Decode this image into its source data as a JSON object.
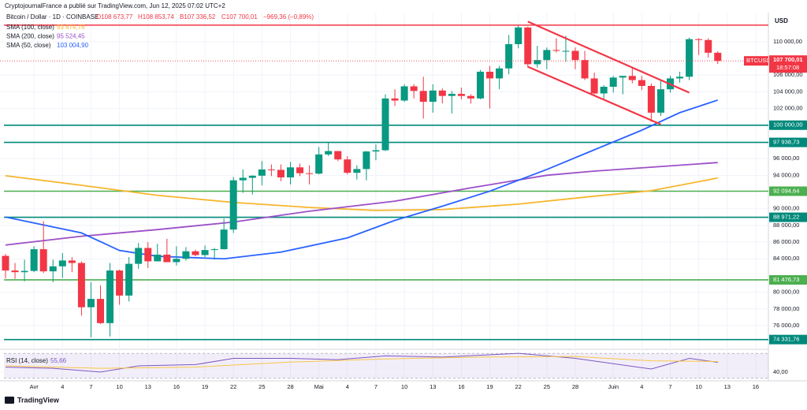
{
  "credit": "CryptojournalFrance a publié sur TradingView.com, Jun 12, 2025 07:02 UTC+2",
  "footer": "TradingView",
  "chart_data": {
    "type": "candlestick",
    "title": "Bitcoin / Dollar · 1D · COINBASE",
    "ohlc_header": [
      "O108 673,77",
      "H108 853,74",
      "B107 336,52",
      "C107 700,01",
      "−969,36 (−0,89%)"
    ],
    "currency": "USD",
    "up_color": "#089981",
    "down_color": "#f23645",
    "xlim": [
      "2025-03-29",
      "2025-06-17"
    ],
    "xticks": [
      {
        "value": "2025-04-01",
        "label": "Avr"
      },
      {
        "value": "2025-04-04",
        "label": "4"
      },
      {
        "value": "2025-04-07",
        "label": "7"
      },
      {
        "value": "2025-04-10",
        "label": "10"
      },
      {
        "value": "2025-04-13",
        "label": "13"
      },
      {
        "value": "2025-04-16",
        "label": "16"
      },
      {
        "value": "2025-04-19",
        "label": "19"
      },
      {
        "value": "2025-04-22",
        "label": "22"
      },
      {
        "value": "2025-04-25",
        "label": "25"
      },
      {
        "value": "2025-04-28",
        "label": "28"
      },
      {
        "value": "2025-05-01",
        "label": "Mai"
      },
      {
        "value": "2025-05-04",
        "label": "4"
      },
      {
        "value": "2025-05-07",
        "label": "7"
      },
      {
        "value": "2025-05-10",
        "label": "10"
      },
      {
        "value": "2025-05-13",
        "label": "13"
      },
      {
        "value": "2025-05-16",
        "label": "16"
      },
      {
        "value": "2025-05-19",
        "label": "19"
      },
      {
        "value": "2025-05-22",
        "label": "22"
      },
      {
        "value": "2025-05-25",
        "label": "25"
      },
      {
        "value": "2025-05-28",
        "label": "28"
      },
      {
        "value": "2025-06-01",
        "label": "Juin"
      },
      {
        "value": "2025-06-04",
        "label": "4"
      },
      {
        "value": "2025-06-07",
        "label": "7"
      },
      {
        "value": "2025-06-10",
        "label": "10"
      },
      {
        "value": "2025-06-13",
        "label": "13"
      },
      {
        "value": "2025-06-16",
        "label": "16"
      }
    ],
    "ylim": [
      73450,
      113100
    ],
    "yticks": [
      {
        "value": 76000,
        "label": "76 000,00"
      },
      {
        "value": 78000,
        "label": "78 000,00"
      },
      {
        "value": 80000,
        "label": "80 000,00"
      },
      {
        "value": 84000,
        "label": "84 000,00"
      },
      {
        "value": 86000,
        "label": "86 000,00"
      },
      {
        "value": 88000,
        "label": "88 000,00"
      },
      {
        "value": 90000,
        "label": "90 000,00"
      },
      {
        "value": 94000,
        "label": "94 000,00"
      },
      {
        "value": 96000,
        "label": "96 000,00"
      },
      {
        "value": 102000,
        "label": "102 000,00"
      },
      {
        "value": 104000,
        "label": "104 000,00"
      },
      {
        "value": 106000,
        "label": "106 000,00"
      },
      {
        "value": 110000,
        "label": "110 000,00"
      }
    ],
    "grid": true,
    "candles": [
      {
        "x": "2025-03-29",
        "open": 84350,
        "high": 84570,
        "low": 81650,
        "close": 82600
      },
      {
        "x": "2025-03-30",
        "open": 82600,
        "high": 83500,
        "low": 81600,
        "close": 82400
      },
      {
        "x": "2025-03-31",
        "open": 82400,
        "high": 83900,
        "low": 81300,
        "close": 82550
      },
      {
        "x": "2025-04-01",
        "open": 82550,
        "high": 85500,
        "low": 82400,
        "close": 85150
      },
      {
        "x": "2025-04-02",
        "open": 85150,
        "high": 88500,
        "low": 82300,
        "close": 82500
      },
      {
        "x": "2025-04-03",
        "open": 82500,
        "high": 83900,
        "low": 81200,
        "close": 83100
      },
      {
        "x": "2025-04-04",
        "open": 83100,
        "high": 84700,
        "low": 81700,
        "close": 83800
      },
      {
        "x": "2025-04-05",
        "open": 83800,
        "high": 84200,
        "low": 82400,
        "close": 83500
      },
      {
        "x": "2025-04-06",
        "open": 83500,
        "high": 83700,
        "low": 77200,
        "close": 78200
      },
      {
        "x": "2025-04-07",
        "open": 78200,
        "high": 81200,
        "low": 74600,
        "close": 79200
      },
      {
        "x": "2025-04-08",
        "open": 79200,
        "high": 80800,
        "low": 76200,
        "close": 76300
      },
      {
        "x": "2025-04-09",
        "open": 76300,
        "high": 83500,
        "low": 74700,
        "close": 82600
      },
      {
        "x": "2025-04-10",
        "open": 82600,
        "high": 82700,
        "low": 78500,
        "close": 79600
      },
      {
        "x": "2025-04-11",
        "open": 79600,
        "high": 84200,
        "low": 78900,
        "close": 83400
      },
      {
        "x": "2025-04-12",
        "open": 83400,
        "high": 85900,
        "low": 82800,
        "close": 85300
      },
      {
        "x": "2025-04-13",
        "open": 85300,
        "high": 86000,
        "low": 82900,
        "close": 83700
      },
      {
        "x": "2025-04-14",
        "open": 83700,
        "high": 85800,
        "low": 83700,
        "close": 84500
      },
      {
        "x": "2025-04-15",
        "open": 84500,
        "high": 86400,
        "low": 83600,
        "close": 83600
      },
      {
        "x": "2025-04-16",
        "open": 83600,
        "high": 85500,
        "low": 83200,
        "close": 84000
      },
      {
        "x": "2025-04-17",
        "open": 84000,
        "high": 85400,
        "low": 83800,
        "close": 84900
      },
      {
        "x": "2025-04-18",
        "open": 84900,
        "high": 85100,
        "low": 84300,
        "close": 84450
      },
      {
        "x": "2025-04-19",
        "open": 84450,
        "high": 85600,
        "low": 84200,
        "close": 85050
      },
      {
        "x": "2025-04-20",
        "open": 85050,
        "high": 85300,
        "low": 83900,
        "close": 85150
      },
      {
        "x": "2025-04-21",
        "open": 85150,
        "high": 88800,
        "low": 85100,
        "close": 87500
      },
      {
        "x": "2025-04-22",
        "open": 87500,
        "high": 93800,
        "low": 87100,
        "close": 93400
      },
      {
        "x": "2025-04-23",
        "open": 93400,
        "high": 94700,
        "low": 91900,
        "close": 93700
      },
      {
        "x": "2025-04-24",
        "open": 93700,
        "high": 94000,
        "low": 91700,
        "close": 93950
      },
      {
        "x": "2025-04-25",
        "open": 93950,
        "high": 95700,
        "low": 92800,
        "close": 94700
      },
      {
        "x": "2025-04-26",
        "open": 94700,
        "high": 95300,
        "low": 93900,
        "close": 94650
      },
      {
        "x": "2025-04-27",
        "open": 94650,
        "high": 95300,
        "low": 93300,
        "close": 93750
      },
      {
        "x": "2025-04-28",
        "open": 93750,
        "high": 95600,
        "low": 92900,
        "close": 94950
      },
      {
        "x": "2025-04-29",
        "open": 94950,
        "high": 95400,
        "low": 93900,
        "close": 94250
      },
      {
        "x": "2025-04-30",
        "open": 94250,
        "high": 95200,
        "low": 92900,
        "close": 94200
      },
      {
        "x": "2025-05-01",
        "open": 94200,
        "high": 97400,
        "low": 94100,
        "close": 96500
      },
      {
        "x": "2025-05-02",
        "open": 96500,
        "high": 97900,
        "low": 96300,
        "close": 96900
      },
      {
        "x": "2025-05-03",
        "open": 96900,
        "high": 96900,
        "low": 95700,
        "close": 95900
      },
      {
        "x": "2025-05-04",
        "open": 95900,
        "high": 96300,
        "low": 94100,
        "close": 94300
      },
      {
        "x": "2025-05-05",
        "open": 94300,
        "high": 95200,
        "low": 93500,
        "close": 94750
      },
      {
        "x": "2025-05-06",
        "open": 94750,
        "high": 96900,
        "low": 93400,
        "close": 96850
      },
      {
        "x": "2025-05-07",
        "open": 96850,
        "high": 97700,
        "low": 95800,
        "close": 97000
      },
      {
        "x": "2025-05-08",
        "open": 97000,
        "high": 103700,
        "low": 96900,
        "close": 103200
      },
      {
        "x": "2025-05-09",
        "open": 103200,
        "high": 104300,
        "low": 102300,
        "close": 102950
      },
      {
        "x": "2025-05-10",
        "open": 102950,
        "high": 104900,
        "low": 102800,
        "close": 104650
      },
      {
        "x": "2025-05-11",
        "open": 104650,
        "high": 104900,
        "low": 103200,
        "close": 104100
      },
      {
        "x": "2025-05-12",
        "open": 104100,
        "high": 105800,
        "low": 100800,
        "close": 102800
      },
      {
        "x": "2025-05-13",
        "open": 102800,
        "high": 104900,
        "low": 101500,
        "close": 104150
      },
      {
        "x": "2025-05-14",
        "open": 104150,
        "high": 104400,
        "low": 102600,
        "close": 103500
      },
      {
        "x": "2025-05-15",
        "open": 103500,
        "high": 104100,
        "low": 101400,
        "close": 103750
      },
      {
        "x": "2025-05-16",
        "open": 103750,
        "high": 104500,
        "low": 103100,
        "close": 103500
      },
      {
        "x": "2025-05-17",
        "open": 103500,
        "high": 103700,
        "low": 102600,
        "close": 103200
      },
      {
        "x": "2025-05-18",
        "open": 103200,
        "high": 106600,
        "low": 103100,
        "close": 106400
      },
      {
        "x": "2025-05-19",
        "open": 106400,
        "high": 107100,
        "low": 102000,
        "close": 105600
      },
      {
        "x": "2025-05-20",
        "open": 105600,
        "high": 107100,
        "low": 104300,
        "close": 106800
      },
      {
        "x": "2025-05-21",
        "open": 106800,
        "high": 110800,
        "low": 106100,
        "close": 109700
      },
      {
        "x": "2025-05-22",
        "open": 109700,
        "high": 111900,
        "low": 109200,
        "close": 111700
      },
      {
        "x": "2025-05-23",
        "open": 111700,
        "high": 111800,
        "low": 106900,
        "close": 107300
      },
      {
        "x": "2025-05-24",
        "open": 107300,
        "high": 109500,
        "low": 106900,
        "close": 107800
      },
      {
        "x": "2025-05-25",
        "open": 107800,
        "high": 109300,
        "low": 106700,
        "close": 109000
      },
      {
        "x": "2025-05-26",
        "open": 109000,
        "high": 110400,
        "low": 108700,
        "close": 108900
      },
      {
        "x": "2025-05-27",
        "open": 108900,
        "high": 110700,
        "low": 107600,
        "close": 108900
      },
      {
        "x": "2025-05-28",
        "open": 108900,
        "high": 109300,
        "low": 106700,
        "close": 107800
      },
      {
        "x": "2025-05-29",
        "open": 107800,
        "high": 108900,
        "low": 105400,
        "close": 105600
      },
      {
        "x": "2025-05-30",
        "open": 105600,
        "high": 106300,
        "low": 103700,
        "close": 103800
      },
      {
        "x": "2025-05-31",
        "open": 103800,
        "high": 104800,
        "low": 103100,
        "close": 104600
      },
      {
        "x": "2025-06-01",
        "open": 104600,
        "high": 105900,
        "low": 103900,
        "close": 105700
      },
      {
        "x": "2025-06-02",
        "open": 105700,
        "high": 105900,
        "low": 103700,
        "close": 105900
      },
      {
        "x": "2025-06-03",
        "open": 105900,
        "high": 106800,
        "low": 105000,
        "close": 105400
      },
      {
        "x": "2025-06-04",
        "open": 105400,
        "high": 105900,
        "low": 104200,
        "close": 104700
      },
      {
        "x": "2025-06-05",
        "open": 104700,
        "high": 105000,
        "low": 100400,
        "close": 101500
      },
      {
        "x": "2025-06-06",
        "open": 101500,
        "high": 105300,
        "low": 101100,
        "close": 104300
      },
      {
        "x": "2025-06-07",
        "open": 104300,
        "high": 105900,
        "low": 103900,
        "close": 105600
      },
      {
        "x": "2025-06-08",
        "open": 105600,
        "high": 106400,
        "low": 105100,
        "close": 105800
      },
      {
        "x": "2025-06-09",
        "open": 105800,
        "high": 110500,
        "low": 105400,
        "close": 110300
      },
      {
        "x": "2025-06-10",
        "open": 110300,
        "high": 110400,
        "low": 108400,
        "close": 110200
      },
      {
        "x": "2025-06-11",
        "open": 110200,
        "high": 110400,
        "low": 108100,
        "close": 108673.77
      },
      {
        "x": "2025-06-12",
        "open": 108673.77,
        "high": 108853.74,
        "low": 107336.52,
        "close": 107700.01
      }
    ],
    "series": [
      {
        "name": "SMA (100, close)",
        "color": "#f7b52c",
        "value_label": "93 674,76",
        "x": [
          "2025-03-29",
          "2025-04-06",
          "2025-04-14",
          "2025-04-22",
          "2025-04-30",
          "2025-05-07",
          "2025-05-14",
          "2025-05-22",
          "2025-05-30",
          "2025-06-05",
          "2025-06-12"
        ],
        "values": [
          93950,
          92800,
          91600,
          90750,
          90150,
          89800,
          89900,
          90550,
          91500,
          92150,
          93674.76
        ]
      },
      {
        "name": "SMA (200, close)",
        "color": "#9c4fc8",
        "value_label": "95 524,45",
        "x": [
          "2025-03-29",
          "2025-04-06",
          "2025-04-14",
          "2025-04-22",
          "2025-04-30",
          "2025-05-09",
          "2025-05-17",
          "2025-05-25",
          "2025-05-30",
          "2025-06-12"
        ],
        "values": [
          85650,
          86700,
          87500,
          88400,
          89700,
          90900,
          92500,
          94000,
          94500,
          95524.45
        ]
      },
      {
        "name": "SMA (50, close)",
        "color": "#2962ff",
        "value_label": "103 004,90",
        "x": [
          "2025-03-29",
          "2025-04-06",
          "2025-04-10",
          "2025-04-14",
          "2025-04-21",
          "2025-04-27",
          "2025-05-04",
          "2025-05-09",
          "2025-05-14",
          "2025-05-19",
          "2025-05-25",
          "2025-05-30",
          "2025-06-04",
          "2025-06-08",
          "2025-06-12"
        ],
        "values": [
          89000,
          87100,
          85000,
          84300,
          84000,
          84800,
          86500,
          88600,
          90300,
          92100,
          94700,
          97050,
          99400,
          101500,
          103004.9
        ]
      }
    ],
    "levels": [
      {
        "value": 111980,
        "color": "#f23645"
      },
      {
        "value": 100000,
        "label": "100 000,00",
        "color": "#00897b"
      },
      {
        "value": 97938.73,
        "label": "97 938,73",
        "color": "#00897b"
      },
      {
        "value": 92094.64,
        "label": "92 094,64",
        "color": "#4caf50"
      },
      {
        "value": 88971.22,
        "label": "88 971,22",
        "color": "#00897b"
      },
      {
        "value": 81476.73,
        "label": "81 476,73",
        "color": "#4caf50"
      },
      {
        "value": 74331.76,
        "label": "74 331,76",
        "color": "#00897b"
      }
    ],
    "trendlines": [
      {
        "color": "#f23645",
        "points": [
          {
            "x": "2025-05-23",
            "y": 112400
          },
          {
            "x": "2025-06-09",
            "y": 103900
          }
        ]
      },
      {
        "color": "#f23645",
        "points": [
          {
            "x": "2025-05-23",
            "y": 107000
          },
          {
            "x": "2025-06-06",
            "y": 100100
          }
        ]
      }
    ],
    "price_tag": {
      "symbol": "BTCUSD",
      "value": 107700.01,
      "label": "107 700,01",
      "countdown": "18:57:08"
    },
    "rsi": {
      "name": "RSI (14, close)",
      "value_label": "55,66",
      "ylim": [
        26,
        74
      ],
      "yticks": [
        {
          "value": 40,
          "label": "40,00"
        }
      ],
      "band": [
        30,
        70
      ],
      "series": [
        {
          "color": "#7e57c2",
          "x": [
            "2025-03-29",
            "2025-04-03",
            "2025-04-08",
            "2025-04-12",
            "2025-04-18",
            "2025-04-22",
            "2025-04-28",
            "2025-05-03",
            "2025-05-08",
            "2025-05-14",
            "2025-05-22",
            "2025-05-28",
            "2025-06-05",
            "2025-06-09",
            "2025-06-12"
          ],
          "values": [
            48,
            46,
            40,
            50,
            52,
            62,
            62,
            60,
            66,
            64,
            70,
            62,
            45,
            62,
            55.66
          ]
        },
        {
          "color": "#f7c548",
          "x": [
            "2025-03-29",
            "2025-04-08",
            "2025-04-18",
            "2025-04-28",
            "2025-05-08",
            "2025-05-18",
            "2025-05-28",
            "2025-06-05",
            "2025-06-12"
          ],
          "values": [
            50,
            46,
            48,
            56,
            61,
            64,
            65,
            58,
            57
          ]
        }
      ]
    }
  }
}
